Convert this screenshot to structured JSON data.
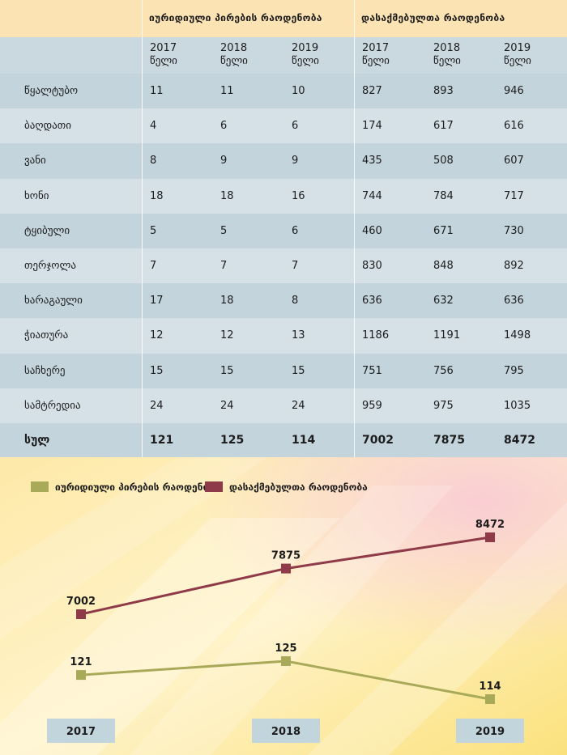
{
  "table": {
    "group_headers": [
      "იურიდიული პირების რაოდენობა",
      "დასაქმებულთა რაოდენობა"
    ],
    "year_headers": [
      {
        "year": "2017",
        "unit": "წელი"
      },
      {
        "year": "2018",
        "unit": "წელი"
      },
      {
        "year": "2019",
        "unit": "წელი"
      },
      {
        "year": "2017",
        "unit": "წელი"
      },
      {
        "year": "2018",
        "unit": "წელი"
      },
      {
        "year": "2019",
        "unit": "წელი"
      }
    ],
    "rows": [
      [
        "წყალტუბო",
        "11",
        "11",
        "10",
        "827",
        "893",
        "946"
      ],
      [
        "ბაღდათი",
        "4",
        "6",
        "6",
        "174",
        "617",
        "616"
      ],
      [
        "ვანი",
        "8",
        "9",
        "9",
        "435",
        "508",
        "607"
      ],
      [
        "ხონი",
        "18",
        "18",
        "16",
        "744",
        "784",
        "717"
      ],
      [
        "ტყიბული",
        "5",
        "5",
        "6",
        "460",
        "671",
        "730"
      ],
      [
        "თერჯოლა",
        "7",
        "7",
        "7",
        "830",
        "848",
        "892"
      ],
      [
        "ხარაგაული",
        "17",
        "18",
        "8",
        "636",
        "632",
        "636"
      ],
      [
        "ჭიათურა",
        "12",
        "12",
        "13",
        "1186",
        "1191",
        "1498"
      ],
      [
        "საჩხერე",
        "15",
        "15",
        "15",
        "751",
        "756",
        "795"
      ],
      [
        "სამტრედია",
        "24",
        "24",
        "24",
        "959",
        "975",
        "1035"
      ]
    ],
    "total": [
      "სულ",
      "121",
      "125",
      "114",
      "7002",
      "7875",
      "8472"
    ]
  },
  "chart_data": {
    "type": "line",
    "x": [
      "2017",
      "2018",
      "2019"
    ],
    "series": [
      {
        "name": "იურიდიული პირების რაოდენობა",
        "values": [
          121,
          125,
          114
        ],
        "color": "#a9a95a"
      },
      {
        "name": "დასაქმებულთა რაოდენობა",
        "values": [
          7002,
          7875,
          8472
        ],
        "color": "#8e3a48"
      }
    ],
    "legend_position": "top-left"
  },
  "colors": {
    "header_bg": "#fbe3b4",
    "row_dark": "#c3d4dd",
    "row_light": "#d5e1e7",
    "x_label_bg": "#c2d4dc"
  }
}
